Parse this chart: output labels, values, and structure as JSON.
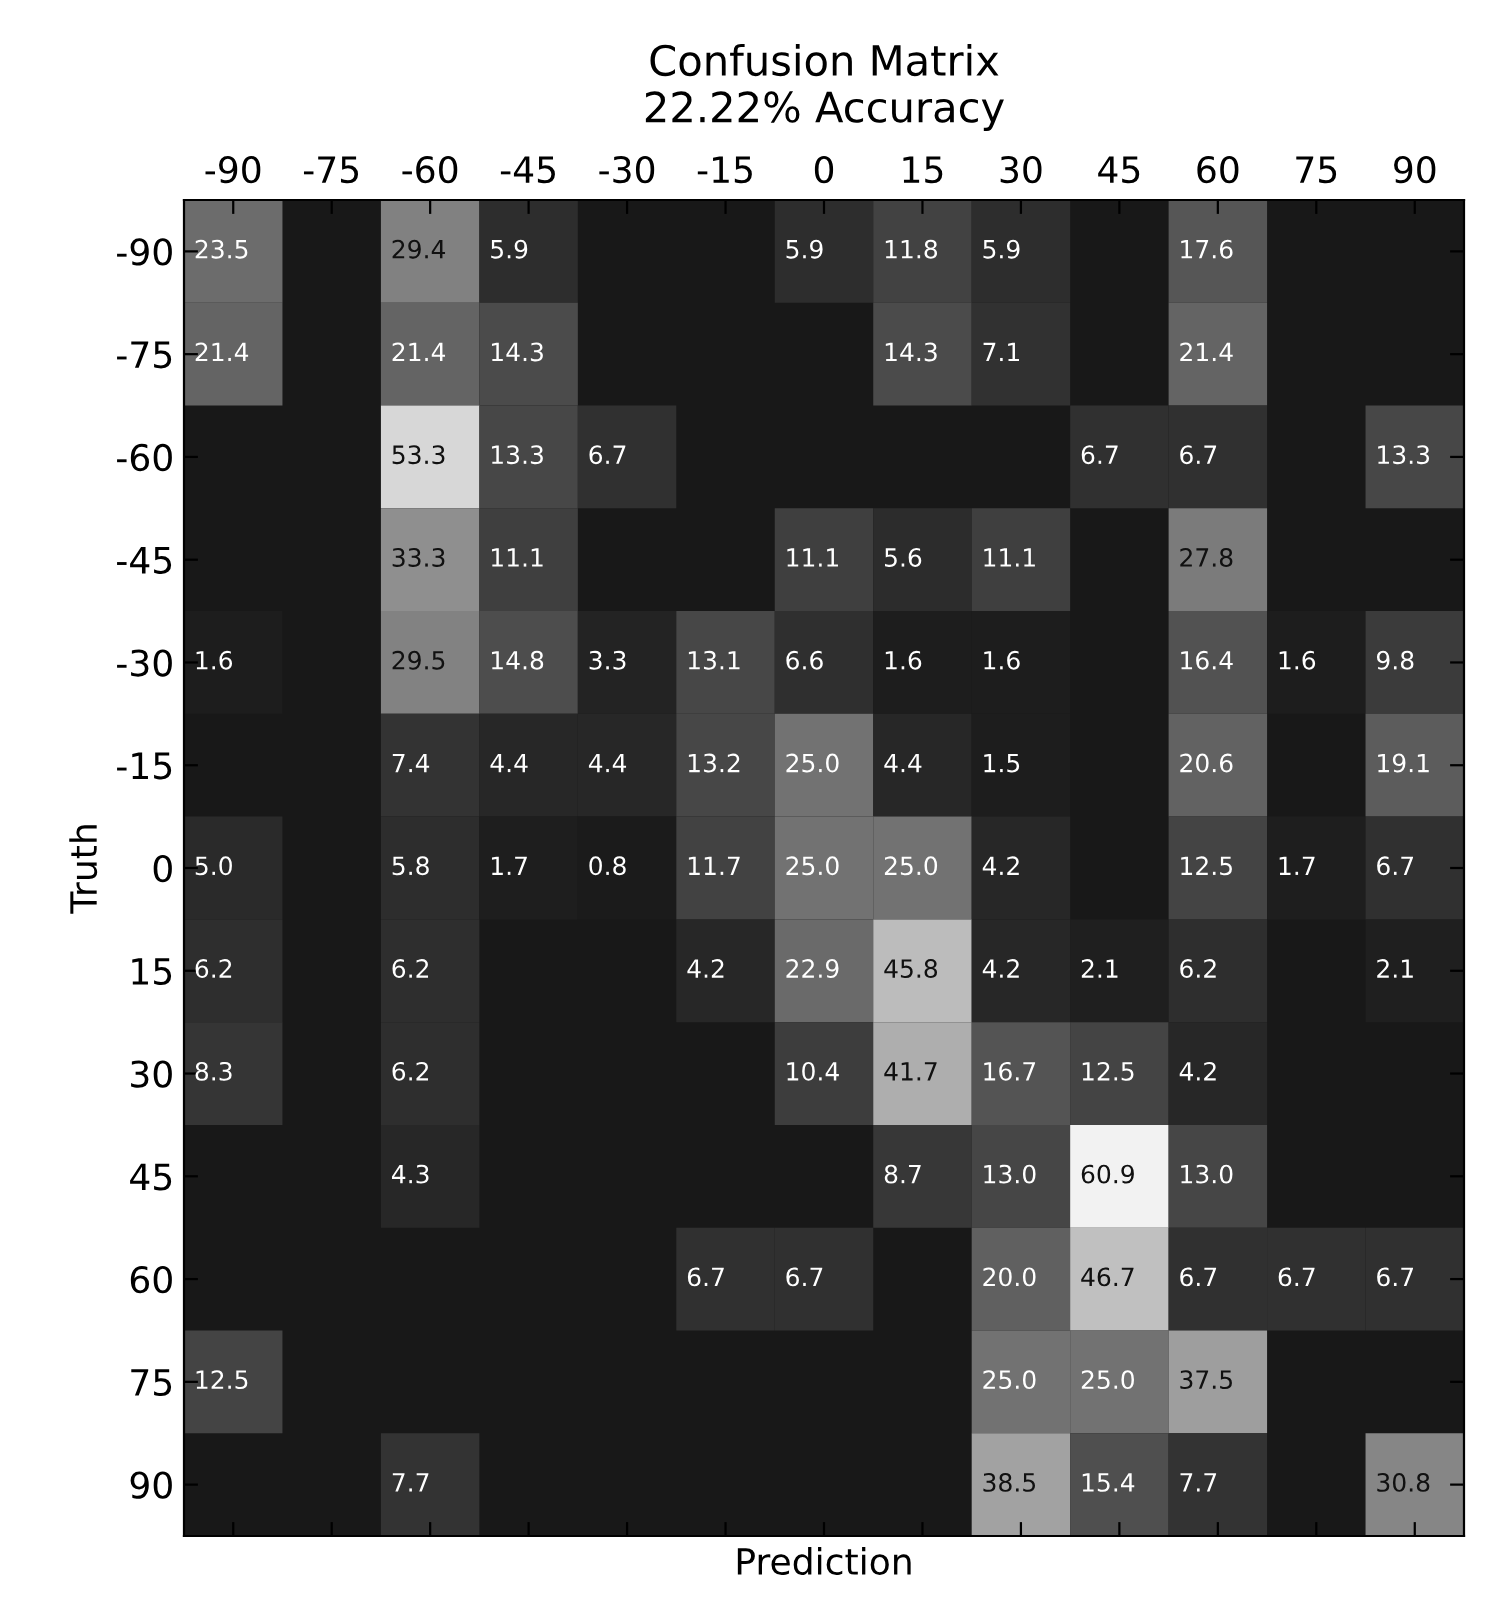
{
  "chart_data": {
    "type": "heatmap",
    "title": "Confusion Matrix",
    "subtitle": "22.22% Accuracy",
    "xlabel": "Prediction",
    "ylabel": "Truth",
    "categories": [
      "-90",
      "-75",
      "-60",
      "-45",
      "-30",
      "-15",
      "0",
      "15",
      "30",
      "45",
      "60",
      "75",
      "90"
    ],
    "y_categories": [
      "-90",
      "-75",
      "-60",
      "-45",
      "-30",
      "-15",
      "0",
      "15",
      "30",
      "45",
      "60",
      "75",
      "90"
    ],
    "cells": [
      [
        23.5,
        null,
        29.4,
        5.9,
        null,
        null,
        5.9,
        11.8,
        5.9,
        null,
        17.6,
        null,
        null
      ],
      [
        21.4,
        null,
        21.4,
        14.3,
        null,
        null,
        null,
        14.3,
        7.1,
        null,
        21.4,
        null,
        null
      ],
      [
        null,
        null,
        53.3,
        13.3,
        6.7,
        null,
        null,
        null,
        null,
        6.7,
        6.7,
        null,
        13.3
      ],
      [
        null,
        null,
        33.3,
        11.1,
        null,
        null,
        11.1,
        5.6,
        11.1,
        null,
        27.8,
        null,
        null
      ],
      [
        1.6,
        null,
        29.5,
        14.8,
        3.3,
        13.1,
        6.6,
        1.6,
        1.6,
        null,
        16.4,
        1.6,
        9.8
      ],
      [
        null,
        null,
        7.4,
        4.4,
        4.4,
        13.2,
        25.0,
        4.4,
        1.5,
        null,
        20.6,
        null,
        19.1
      ],
      [
        5.0,
        null,
        5.8,
        1.7,
        0.8,
        11.7,
        25.0,
        25.0,
        4.2,
        null,
        12.5,
        1.7,
        6.7
      ],
      [
        6.2,
        null,
        6.2,
        null,
        null,
        4.2,
        22.9,
        45.8,
        4.2,
        2.1,
        6.2,
        null,
        2.1
      ],
      [
        8.3,
        null,
        6.2,
        null,
        null,
        null,
        10.4,
        41.7,
        16.7,
        12.5,
        4.2,
        null,
        null
      ],
      [
        null,
        null,
        4.3,
        null,
        null,
        null,
        null,
        8.7,
        13.0,
        60.9,
        13.0,
        null,
        null
      ],
      [
        null,
        null,
        null,
        null,
        null,
        6.7,
        6.7,
        null,
        20.0,
        46.7,
        6.7,
        6.7,
        6.7
      ],
      [
        12.5,
        null,
        null,
        null,
        null,
        null,
        null,
        null,
        25.0,
        25.0,
        37.5,
        null,
        null
      ],
      [
        null,
        null,
        7.7,
        null,
        null,
        null,
        null,
        null,
        38.5,
        15.4,
        7.7,
        null,
        30.8
      ]
    ],
    "cell_labels": [
      [
        "23.5",
        null,
        "29.4",
        "5.9",
        null,
        null,
        "5.9",
        "11.8",
        "5.9",
        null,
        "17.6",
        null,
        null
      ],
      [
        "21.4",
        null,
        "21.4",
        "14.3",
        null,
        null,
        null,
        "14.3",
        "7.1",
        null,
        "21.4",
        null,
        null
      ],
      [
        null,
        null,
        "53.3",
        "13.3",
        "6.7",
        null,
        null,
        null,
        null,
        "6.7",
        "6.7",
        null,
        "13.3"
      ],
      [
        null,
        null,
        "33.3",
        "11.1",
        null,
        null,
        "11.1",
        "5.6",
        "11.1",
        null,
        "27.8",
        null,
        null
      ],
      [
        "1.6",
        null,
        "29.5",
        "14.8",
        "3.3",
        "13.1",
        "6.6",
        "1.6",
        "1.6",
        null,
        "16.4",
        "1.6",
        "9.8"
      ],
      [
        null,
        null,
        "7.4",
        "4.4",
        "4.4",
        "13.2",
        "25.0",
        "4.4",
        "1.5",
        null,
        "20.6",
        null,
        "19.1"
      ],
      [
        "5.0",
        null,
        "5.8",
        "1.7",
        "0.8",
        "11.7",
        "25.0",
        "25.0",
        "4.2",
        null,
        "12.5",
        "1.7",
        "6.7"
      ],
      [
        "6.2",
        null,
        "6.2",
        null,
        null,
        "4.2",
        "22.9",
        "45.8",
        "4.2",
        "2.1",
        "6.2",
        null,
        "2.1"
      ],
      [
        "8.3",
        null,
        "6.2",
        null,
        null,
        null,
        "10.4",
        "41.7",
        "16.7",
        "12.5",
        "4.2",
        null,
        null
      ],
      [
        null,
        null,
        "4.3",
        null,
        null,
        null,
        null,
        "8.7",
        "13.0",
        "60.9",
        "13.0",
        null,
        null
      ],
      [
        null,
        null,
        null,
        null,
        null,
        "6.7",
        "6.7",
        null,
        "20.0",
        "46.7",
        "6.7",
        "6.7",
        "6.7"
      ],
      [
        "12.5",
        null,
        null,
        null,
        null,
        null,
        null,
        null,
        "25.0",
        "25.0",
        "37.5",
        null,
        null
      ],
      [
        null,
        null,
        "7.7",
        null,
        null,
        null,
        null,
        null,
        "38.5",
        "15.4",
        "7.7",
        null,
        "30.8"
      ]
    ],
    "grid": false,
    "legend": false
  }
}
